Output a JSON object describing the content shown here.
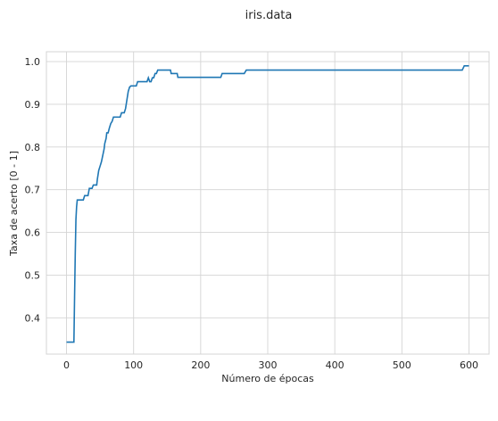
{
  "chart_data": {
    "type": "line",
    "title": "iris.data",
    "xlabel": "Número de épocas",
    "ylabel": "Taxa de acerto [0 - 1]",
    "xlim": [
      -30,
      630
    ],
    "ylim": [
      0.315,
      1.023
    ],
    "xticks": [
      0,
      100,
      200,
      300,
      400,
      500,
      600
    ],
    "yticks": [
      0.4,
      0.5,
      0.6,
      0.7,
      0.8,
      0.9,
      1.0
    ],
    "ytick_labels": [
      "0.4",
      "0.5",
      "0.6",
      "0.7",
      "0.8",
      "0.9",
      "1.0"
    ],
    "grid": true,
    "legend": "none",
    "series": [
      {
        "color": "#1f77b4",
        "x": [
          0,
          11,
          12,
          13,
          14,
          15,
          16,
          17,
          25,
          27,
          32,
          34,
          38,
          40,
          41,
          45,
          46,
          48,
          50,
          52,
          54,
          56,
          57,
          59,
          60,
          62,
          64,
          66,
          68,
          70,
          72,
          74,
          76,
          80,
          82,
          86,
          88,
          90,
          92,
          94,
          96,
          98,
          100,
          104,
          106,
          110,
          116,
          120,
          122,
          124,
          126,
          128,
          130,
          132,
          134,
          136,
          138,
          140,
          142,
          145,
          155,
          156,
          165,
          166,
          175,
          230,
          232,
          265,
          268,
          590,
          593,
          600
        ],
        "y": [
          0.343,
          0.343,
          0.45,
          0.55,
          0.63,
          0.66,
          0.676,
          0.676,
          0.676,
          0.686,
          0.686,
          0.703,
          0.703,
          0.711,
          0.711,
          0.711,
          0.725,
          0.745,
          0.755,
          0.765,
          0.78,
          0.795,
          0.808,
          0.82,
          0.833,
          0.833,
          0.845,
          0.855,
          0.86,
          0.87,
          0.87,
          0.87,
          0.87,
          0.87,
          0.88,
          0.88,
          0.89,
          0.91,
          0.93,
          0.94,
          0.943,
          0.943,
          0.943,
          0.943,
          0.953,
          0.953,
          0.953,
          0.953,
          0.962,
          0.953,
          0.953,
          0.962,
          0.962,
          0.972,
          0.972,
          0.98,
          0.98,
          0.98,
          0.98,
          0.98,
          0.98,
          0.972,
          0.972,
          0.963,
          0.963,
          0.963,
          0.972,
          0.972,
          0.98,
          0.98,
          0.99,
          0.99
        ]
      }
    ]
  }
}
